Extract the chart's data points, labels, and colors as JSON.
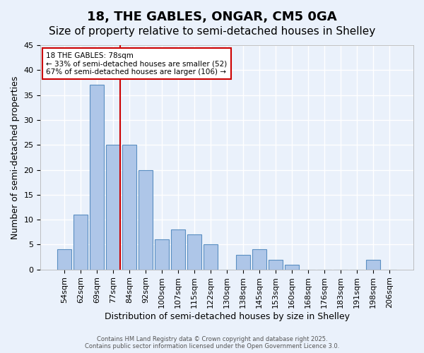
{
  "title1": "18, THE GABLES, ONGAR, CM5 0GA",
  "title2": "Size of property relative to semi-detached houses in Shelley",
  "xlabel": "Distribution of semi-detached houses by size in Shelley",
  "ylabel": "Number of semi-detached properties",
  "categories": [
    "54sqm",
    "62sqm",
    "69sqm",
    "77sqm",
    "84sqm",
    "92sqm",
    "100sqm",
    "107sqm",
    "115sqm",
    "122sqm",
    "130sqm",
    "138sqm",
    "145sqm",
    "153sqm",
    "160sqm",
    "168sqm",
    "176sqm",
    "183sqm",
    "191sqm",
    "198sqm",
    "206sqm"
  ],
  "values": [
    4,
    11,
    37,
    25,
    25,
    20,
    6,
    8,
    7,
    5,
    0,
    3,
    4,
    2,
    1,
    0,
    0,
    0,
    0,
    2,
    0
  ],
  "bar_color": "#aec6e8",
  "bar_edge_color": "#5a8fc2",
  "subject_line_index": 3,
  "subject_line_color": "#cc0000",
  "annotation_title": "18 THE GABLES: 78sqm",
  "annotation_line1": "← 33% of semi-detached houses are smaller (52)",
  "annotation_line2": "67% of semi-detached houses are larger (106) →",
  "annotation_box_edge_color": "#cc0000",
  "ylim": [
    0,
    45
  ],
  "yticks": [
    0,
    5,
    10,
    15,
    20,
    25,
    30,
    35,
    40,
    45
  ],
  "bg_color": "#eaf1fb",
  "plot_bg_color": "#eaf1fb",
  "grid_color": "#ffffff",
  "title_fontsize": 13,
  "subtitle_fontsize": 11,
  "axis_label_fontsize": 9,
  "tick_fontsize": 8,
  "footer_text": "Contains HM Land Registry data © Crown copyright and database right 2025.\nContains public sector information licensed under the Open Government Licence 3.0."
}
